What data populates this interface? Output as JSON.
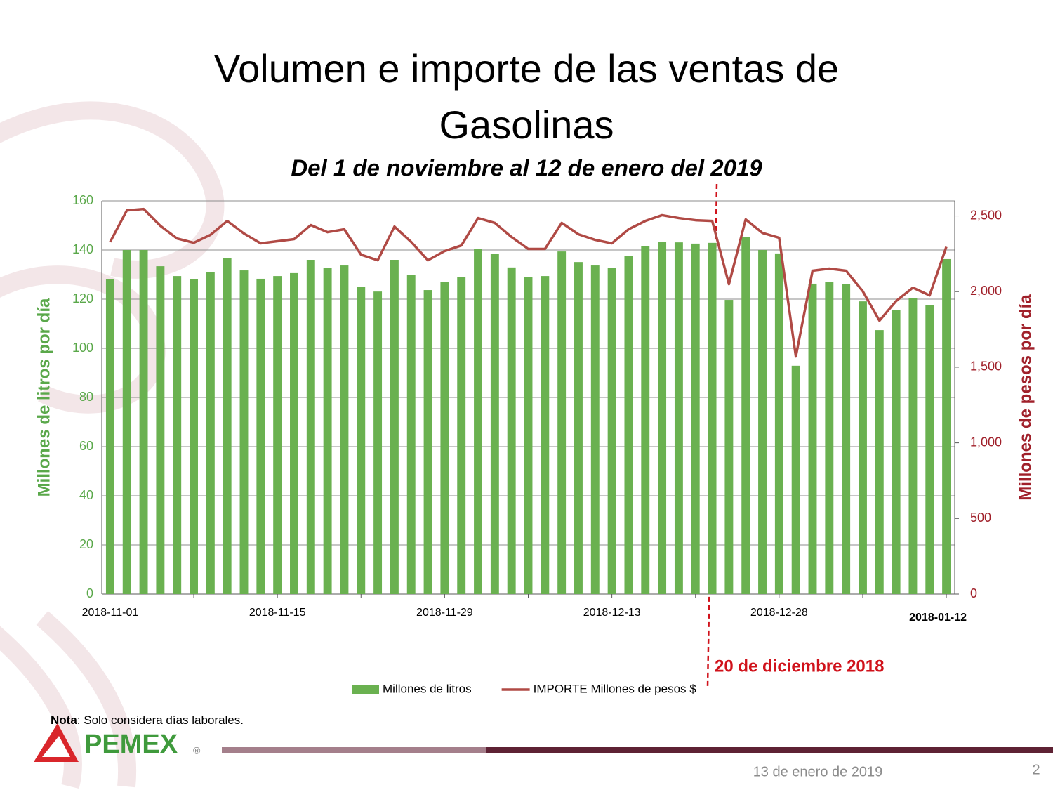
{
  "chart_data": {
    "type": "bar",
    "title": [
      "Volumen e importe de las ventas de",
      "Gasolinas"
    ],
    "subtitle": "Del 1 de noviembre al 12 de enero del 2019",
    "ylabel": "Millones de litros por día",
    "y2label": "Millones de pesos por día",
    "categories": [
      "2018-11-01",
      null,
      null,
      null,
      null,
      null,
      null,
      null,
      null,
      null,
      "2018-11-15",
      null,
      null,
      null,
      null,
      null,
      null,
      null,
      null,
      null,
      "2018-11-29",
      null,
      null,
      null,
      null,
      null,
      null,
      null,
      null,
      null,
      "2018-12-13",
      null,
      null,
      null,
      null,
      null,
      null,
      null,
      null,
      null,
      "2018-12-28",
      null,
      null,
      null,
      null,
      null,
      null,
      null,
      null,
      null,
      "2018-01-12"
    ],
    "series": [
      {
        "name": "Millones de litros",
        "type": "bar",
        "color": "#6ab150",
        "values": [
          128,
          140,
          140,
          133.4,
          129.4,
          128,
          130.9,
          136.6,
          131.7,
          128.3,
          129.4,
          130.6,
          136,
          132.6,
          133.7,
          124.9,
          123.1,
          136,
          130,
          123.7,
          126.9,
          129.1,
          140.3,
          138.3,
          132.9,
          128.9,
          129.4,
          139.4,
          135.1,
          133.7,
          132.6,
          137.7,
          141.7,
          143.4,
          143.1,
          142.6,
          142.9,
          119.7,
          145.4,
          140,
          138.6,
          92.9,
          126.3,
          126.9,
          126,
          119.1,
          107.4,
          115.7,
          120.3,
          117.7,
          136.3
        ]
      },
      {
        "name": "IMPORTE Millones de pesos $",
        "type": "line",
        "axis": "y2",
        "color": "#b04a45",
        "values": [
          2328,
          2537,
          2546,
          2435,
          2351,
          2323,
          2375,
          2467,
          2384,
          2319,
          2333,
          2347,
          2440,
          2393,
          2412,
          2244,
          2207,
          2430,
          2328,
          2207,
          2268,
          2305,
          2486,
          2454,
          2361,
          2282,
          2282,
          2454,
          2379,
          2342,
          2319,
          2412,
          2467,
          2505,
          2486,
          2472,
          2467,
          2049,
          2477,
          2388,
          2356,
          1571,
          2138,
          2152,
          2138,
          2003,
          1808,
          1938,
          2026,
          1975,
          2296
        ]
      }
    ],
    "ylim": [
      0,
      160
    ],
    "yticks": [
      0,
      20,
      40,
      60,
      80,
      100,
      120,
      140,
      160
    ],
    "y2lim": [
      0,
      2600
    ],
    "y2ticks": [
      0,
      500,
      {
        "value": 1000,
        "label": "1,000"
      },
      {
        "value": 1500,
        "label": "1,500"
      },
      {
        "value": 2000,
        "label": "2,000"
      },
      {
        "value": 2500,
        "label": "2,500"
      }
    ],
    "grid": true,
    "legend": "bottom",
    "annotation": "20 de diciembre 2018"
  },
  "note": {
    "label": "Nota",
    "text": ": Solo considera días laborales."
  },
  "logo": "PEMEX",
  "date": "13 de enero de 2019",
  "page": "2"
}
